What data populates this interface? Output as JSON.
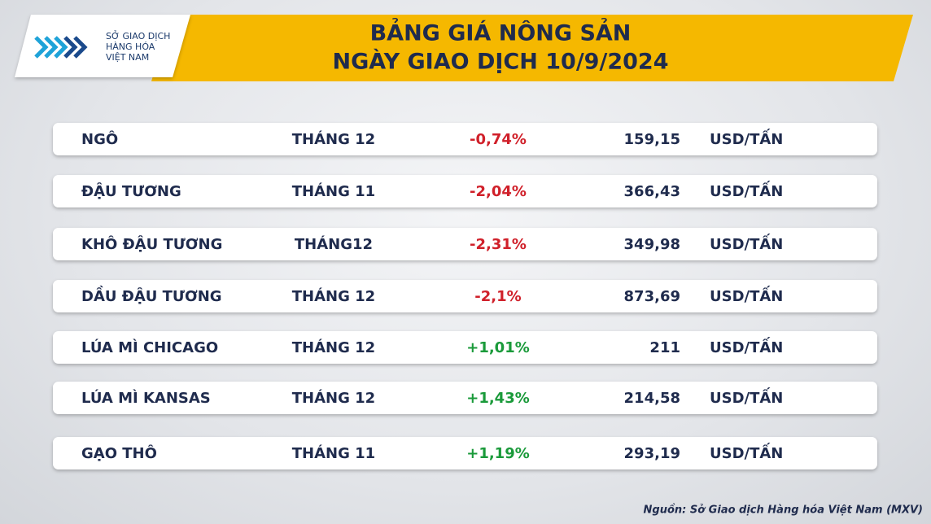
{
  "header": {
    "logo": [
      "SỞ GIAO DỊCH",
      "HÀNG HÓA",
      "VIỆT NAM"
    ],
    "title": [
      "BẢNG GIÁ NÔNG SẢN",
      "NGÀY GIAO DỊCH 10/9/2024"
    ]
  },
  "table": {
    "rows": [
      [
        "NGÔ",
        "THÁNG 12",
        "-0,74%",
        "159,15",
        "USD/TẤN"
      ],
      [
        "ĐẬU TƯƠNG",
        "THÁNG 11",
        "-2,04%",
        "366,43",
        "USD/TẤN"
      ],
      [
        "KHÔ ĐẬU TƯƠNG",
        "THÁNG12",
        "-2,31%",
        "349,98",
        "USD/TẤN"
      ],
      [
        "DẦU ĐẬU TƯƠNG",
        "THÁNG 12",
        "-2,1%",
        "873,69",
        "USD/TẤN"
      ],
      [
        "LÚA MÌ CHICAGO",
        "THÁNG 12",
        "+1,01%",
        "211",
        "USD/TẤN"
      ],
      [
        "LÚA MÌ KANSAS",
        "THÁNG 12",
        "+1,43%",
        "214,58",
        "USD/TẤN"
      ],
      [
        "GẠO THÔ",
        "THÁNG 11",
        "+1,19%",
        "293,19",
        "USD/TẤN"
      ]
    ]
  },
  "source": "Nguồn: Sở Giao dịch Hàng hóa Việt Nam (MXV)"
}
